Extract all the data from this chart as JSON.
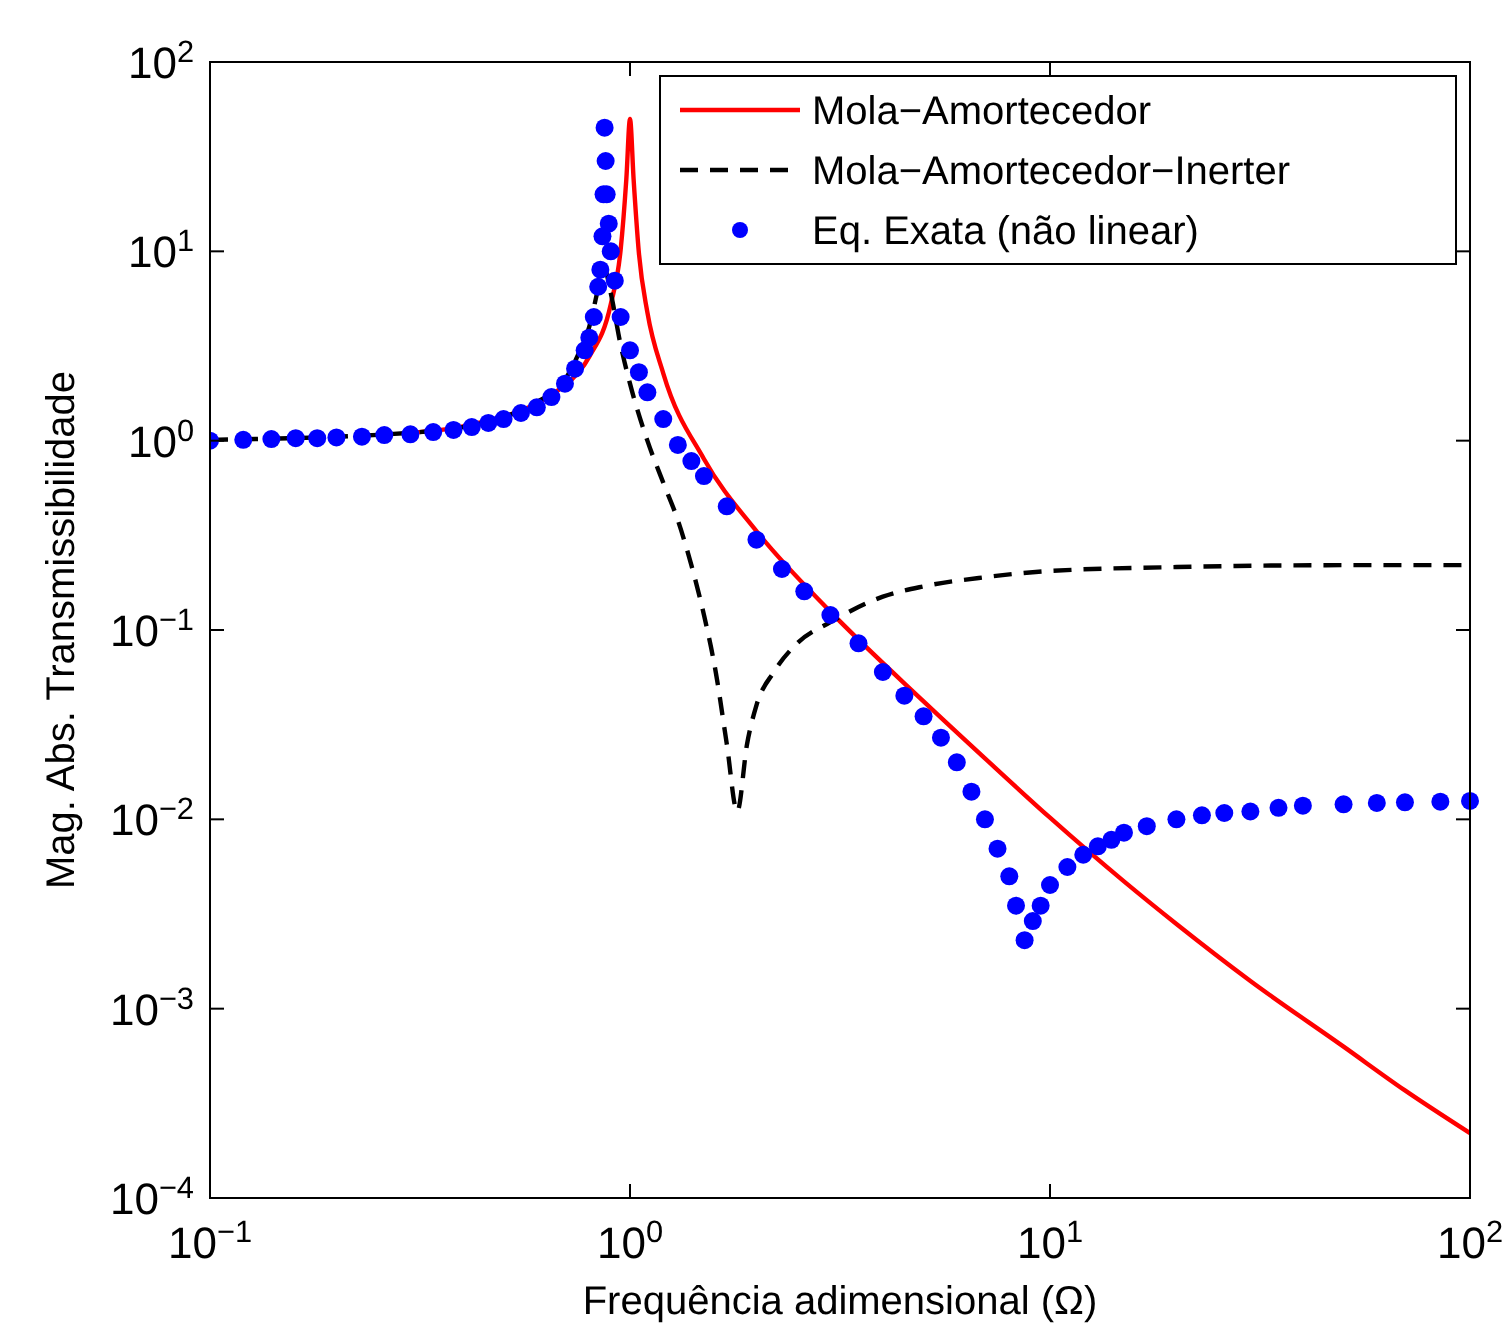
{
  "chart_data": {
    "type": "line",
    "xlabel": "Frequência adimensional (Ω)",
    "ylabel": "Mag. Abs. Transmissibilidade",
    "log": "xy",
    "grid": false,
    "legend": "top right",
    "xlim": [
      0.1,
      100
    ],
    "ylim": [
      0.0001,
      100
    ],
    "xticks": [
      {
        "value": 0.1,
        "label": "10$^{−1}$"
      },
      {
        "value": 1,
        "label": "10$^{0}$"
      },
      {
        "value": 10,
        "label": "10$^{1}$"
      },
      {
        "value": 100,
        "label": "10$^{2}$"
      }
    ],
    "yticks": [
      {
        "value": 0.0001,
        "label": "10$^{−4}$"
      },
      {
        "value": 0.001,
        "label": "10$^{−3}$"
      },
      {
        "value": 0.01,
        "label": "10$^{−2}$"
      },
      {
        "value": 0.1,
        "label": "10$^{−1}$"
      },
      {
        "value": 1,
        "label": "10$^{0}$"
      },
      {
        "value": 10,
        "label": "10$^{1}$"
      },
      {
        "value": 100,
        "label": "10$^{2}$"
      }
    ],
    "series": [
      {
        "name": "Mola−Amortecedor",
        "color": "#ff0000",
        "line_style": "solid",
        "x": [
          0.3,
          0.4,
          0.7,
          0.8,
          0.9,
          0.95,
          0.98,
          1.0,
          1.02,
          1.05,
          1.1,
          1.2,
          1.5,
          2,
          3,
          5,
          7,
          10,
          15,
          20,
          30,
          50,
          70,
          100
        ],
        "values": [
          1.1,
          1.19,
          1.96,
          2.78,
          5.26,
          10.2,
          24,
          50,
          24,
          9.8,
          4.76,
          2.27,
          0.8,
          0.333,
          0.125,
          0.042,
          0.021,
          0.0102,
          0.0047,
          0.0028,
          0.0014,
          0.00063,
          0.00037,
          0.00022
        ]
      },
      {
        "name": "Mola−Amortecedor−Inerter",
        "color": "#000000",
        "line_style": "dashed",
        "x": [
          0.1,
          0.3,
          0.5,
          0.6,
          0.7,
          0.75,
          0.8,
          0.85,
          0.87,
          0.9,
          0.95,
          1.0,
          1.1,
          1.2,
          1.3,
          1.4,
          1.5,
          1.6,
          1.7,
          1.8,
          1.9,
          2.0,
          2.2,
          2.5,
          3,
          4,
          5,
          7,
          10,
          20,
          50,
          100
        ],
        "values": [
          1.01,
          1.1,
          1.33,
          1.6,
          2.1,
          2.8,
          4,
          7,
          8,
          6,
          3.2,
          2,
          1.0,
          0.6,
          0.38,
          0.22,
          0.12,
          0.06,
          0.025,
          0.011,
          0.025,
          0.04,
          0.06,
          0.085,
          0.11,
          0.15,
          0.17,
          0.19,
          0.205,
          0.215,
          0.22,
          0.22
        ]
      },
      {
        "name": "Eq. Exata (não linear)",
        "type": "scatter",
        "marker": "circle",
        "color": "#0000ff",
        "x": [
          0.1,
          0.12,
          0.14,
          0.16,
          0.18,
          0.2,
          0.23,
          0.26,
          0.3,
          0.34,
          0.38,
          0.42,
          0.46,
          0.5,
          0.55,
          0.6,
          0.65,
          0.7,
          0.74,
          0.78,
          0.8,
          0.82,
          0.84,
          0.85,
          0.86,
          0.865,
          0.87,
          0.875,
          0.88,
          0.89,
          0.9,
          0.92,
          0.95,
          1.0,
          1.05,
          1.1,
          1.2,
          1.3,
          1.4,
          1.5,
          1.7,
          2,
          2.3,
          2.6,
          3,
          3.5,
          4,
          4.5,
          5,
          5.5,
          6,
          6.5,
          7,
          7.5,
          8,
          8.3,
          8.7,
          9.1,
          9.5,
          10,
          11,
          12,
          13,
          14,
          15,
          17,
          20,
          23,
          26,
          30,
          35,
          40,
          50,
          60,
          70,
          85,
          100
        ],
        "values": [
          1.0,
          1.01,
          1.02,
          1.03,
          1.03,
          1.04,
          1.05,
          1.07,
          1.08,
          1.11,
          1.14,
          1.18,
          1.24,
          1.3,
          1.4,
          1.5,
          1.7,
          2,
          2.4,
          3,
          3.5,
          4.5,
          6.5,
          8,
          12,
          20,
          45,
          30,
          20,
          14,
          10,
          7,
          4.5,
          3,
          2.3,
          1.8,
          1.3,
          0.95,
          0.78,
          0.65,
          0.45,
          0.3,
          0.21,
          0.16,
          0.12,
          0.085,
          0.06,
          0.045,
          0.035,
          0.027,
          0.02,
          0.014,
          0.01,
          0.007,
          0.005,
          0.0035,
          0.0023,
          0.0029,
          0.0035,
          0.0045,
          0.0056,
          0.0065,
          0.0072,
          0.0078,
          0.0085,
          0.0092,
          0.01,
          0.0105,
          0.0108,
          0.011,
          0.0115,
          0.0118,
          0.012,
          0.0122,
          0.0123,
          0.0124,
          0.0125
        ]
      }
    ]
  }
}
